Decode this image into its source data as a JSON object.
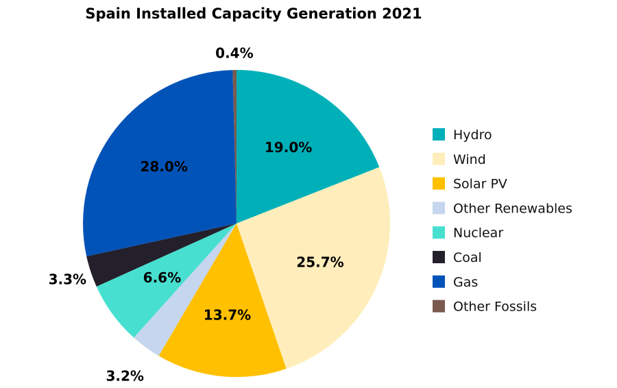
{
  "chart_data": {
    "type": "pie",
    "title": "Spain Installed Capacity Generation 2021",
    "unit": "%",
    "legend_position": "right",
    "slices": [
      {
        "name": "Hydro",
        "value": 19.0,
        "label": "19.0%",
        "color": "#00B0B9"
      },
      {
        "name": "Wind",
        "value": 25.7,
        "label": "25.7%",
        "color": "#FFEEBB"
      },
      {
        "name": "Solar PV",
        "value": 13.7,
        "label": "13.7%",
        "color": "#FFC000"
      },
      {
        "name": "Other Renewables",
        "value": 3.2,
        "label": "3.2%",
        "color": "#C5D6EE"
      },
      {
        "name": "Nuclear",
        "value": 6.6,
        "label": "6.6%",
        "color": "#47E0D0"
      },
      {
        "name": "Coal",
        "value": 3.3,
        "label": "3.3%",
        "color": "#23202B"
      },
      {
        "name": "Gas",
        "value": 28.0,
        "label": "28.0%",
        "color": "#0253B8"
      },
      {
        "name": "Other Fossils",
        "value": 0.4,
        "label": "0.4%",
        "color": "#7A5A4F"
      }
    ]
  }
}
